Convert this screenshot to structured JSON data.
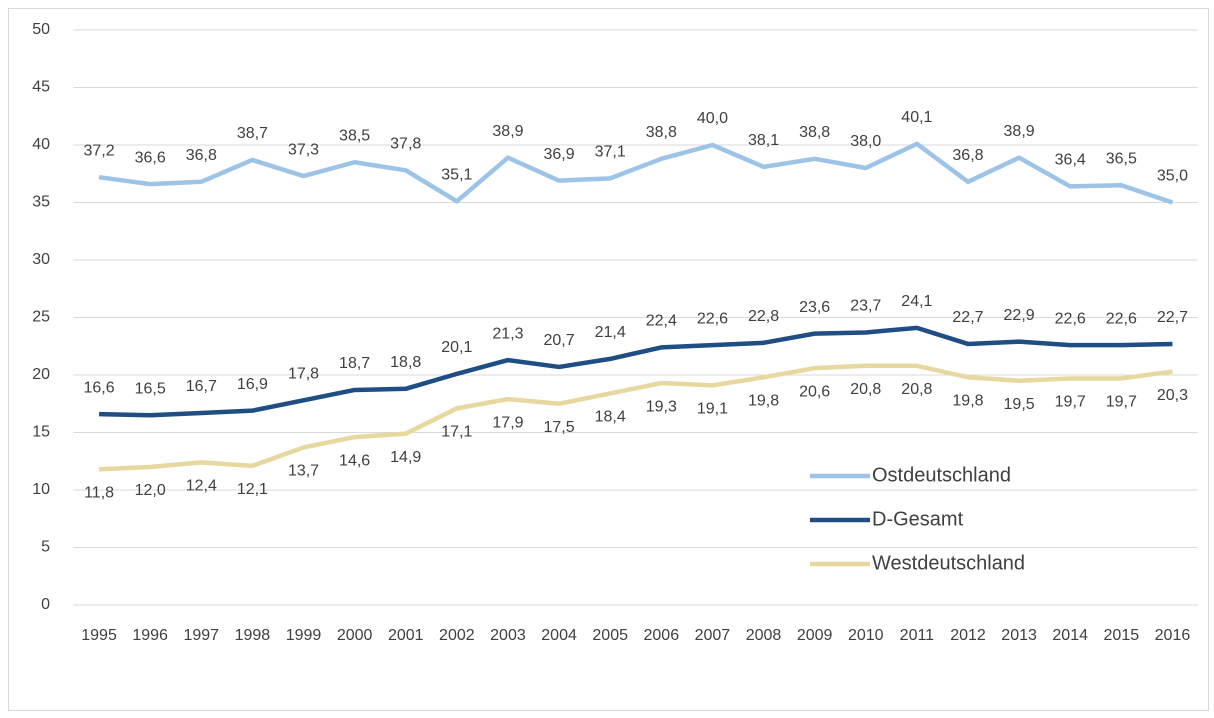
{
  "chart_data": {
    "type": "line",
    "categories": [
      "1995",
      "1996",
      "1997",
      "1998",
      "1999",
      "2000",
      "2001",
      "2002",
      "2003",
      "2004",
      "2005",
      "2006",
      "2007",
      "2008",
      "2009",
      "2010",
      "2011",
      "2012",
      "2013",
      "2014",
      "2015",
      "2016"
    ],
    "series": [
      {
        "name": "Ostdeutschland",
        "color": "#9dc3e6",
        "values": [
          37.2,
          36.6,
          36.8,
          38.7,
          37.3,
          38.5,
          37.8,
          35.1,
          38.9,
          36.9,
          37.1,
          38.8,
          40.0,
          38.1,
          38.8,
          38.0,
          40.1,
          36.8,
          38.9,
          36.4,
          36.5,
          35.0
        ],
        "value_labels": [
          "37,2",
          "36,6",
          "36,8",
          "38,7",
          "37,3",
          "38,5",
          "37,8",
          "35,1",
          "38,9",
          "36,9",
          "37,1",
          "38,8",
          "40,0",
          "38,1",
          "38,8",
          "38,0",
          "40,1",
          "36,8",
          "38,9",
          "36,4",
          "36,5",
          "35,0"
        ]
      },
      {
        "name": "D-Gesamt",
        "color": "#1f4e85",
        "values": [
          16.6,
          16.5,
          16.7,
          16.9,
          17.8,
          18.7,
          18.8,
          20.1,
          21.3,
          20.7,
          21.4,
          22.4,
          22.6,
          22.8,
          23.6,
          23.7,
          24.1,
          22.7,
          22.9,
          22.6,
          22.6,
          22.7
        ],
        "value_labels": [
          "16,6",
          "16,5",
          "16,7",
          "16,9",
          "17,8",
          "18,7",
          "18,8",
          "20,1",
          "21,3",
          "20,7",
          "21,4",
          "22,4",
          "22,6",
          "22,8",
          "23,6",
          "23,7",
          "24,1",
          "22,7",
          "22,9",
          "22,6",
          "22,6",
          "22,7"
        ]
      },
      {
        "name": "Westdeutschland",
        "color": "#e6d89e",
        "values": [
          11.8,
          12.0,
          12.4,
          12.1,
          13.7,
          14.6,
          14.9,
          17.1,
          17.9,
          17.5,
          18.4,
          19.3,
          19.1,
          19.8,
          20.6,
          20.8,
          20.8,
          19.8,
          19.5,
          19.7,
          19.7,
          20.3
        ],
        "value_labels": [
          "11,8",
          "12,0",
          "12,4",
          "12,1",
          "13,7",
          "14,6",
          "14,9",
          "17,1",
          "17,9",
          "17,5",
          "18,4",
          "19,3",
          "19,1",
          "19,8",
          "20,6",
          "20,8",
          "20,8",
          "19,8",
          "19,5",
          "19,7",
          "19,7",
          "20,3"
        ]
      }
    ],
    "ylim": [
      0,
      50
    ],
    "yticks": [
      0,
      5,
      10,
      15,
      20,
      25,
      30,
      35,
      40,
      45,
      50
    ],
    "grid": true,
    "legend": "right"
  }
}
